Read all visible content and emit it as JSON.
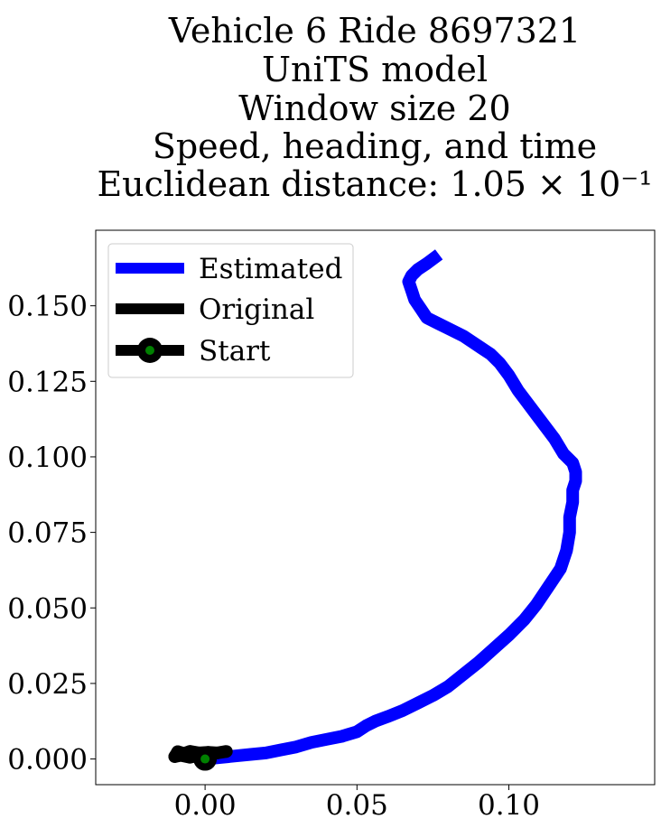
{
  "chart_data": {
    "type": "line",
    "title_lines": [
      "Vehicle 6 Ride 8697321",
      "UniTS model",
      "Window size 20",
      "Speed, heading, and time",
      "Euclidean distance: 1.05 × 10⁻¹"
    ],
    "xlabel": "",
    "ylabel": "",
    "xlim": [
      -0.036,
      0.148
    ],
    "ylim": [
      -0.0085,
      0.175
    ],
    "xticks": [
      0.0,
      0.05,
      0.1
    ],
    "xtick_labels": [
      "0.00",
      "0.05",
      "0.10"
    ],
    "yticks": [
      0.0,
      0.025,
      0.05,
      0.075,
      0.1,
      0.125,
      0.15
    ],
    "ytick_labels": [
      "0.000",
      "0.025",
      "0.050",
      "0.075",
      "0.100",
      "0.125",
      "0.150"
    ],
    "grid": false,
    "legend_position": "upper-left",
    "colors": {
      "estimated": "#0000ff",
      "original": "#000000",
      "start_marker_edge": "#000000",
      "start_marker_fill": "#008000"
    },
    "series": [
      {
        "name": "Estimated",
        "x": [
          0.0,
          0.005,
          0.01,
          0.015,
          0.02,
          0.025,
          0.03,
          0.035,
          0.04,
          0.045,
          0.05,
          0.053,
          0.056,
          0.06,
          0.065,
          0.07,
          0.075,
          0.08,
          0.085,
          0.09,
          0.095,
          0.1,
          0.105,
          0.109,
          0.113,
          0.117,
          0.119,
          0.12,
          0.12,
          0.121,
          0.121,
          0.122,
          0.122,
          0.121,
          0.118,
          0.115,
          0.112,
          0.109,
          0.106,
          0.103,
          0.1,
          0.097,
          0.094,
          0.091,
          0.088,
          0.085,
          0.081,
          0.077,
          0.073,
          0.071,
          0.069,
          0.068,
          0.067,
          0.068,
          0.07,
          0.073,
          0.077
        ],
        "y": [
          0.0,
          0.0005,
          0.001,
          0.0015,
          0.002,
          0.003,
          0.004,
          0.0055,
          0.0065,
          0.0075,
          0.009,
          0.011,
          0.0125,
          0.014,
          0.016,
          0.0185,
          0.021,
          0.024,
          0.028,
          0.032,
          0.0365,
          0.041,
          0.046,
          0.051,
          0.057,
          0.063,
          0.069,
          0.075,
          0.08,
          0.085,
          0.089,
          0.092,
          0.095,
          0.098,
          0.101,
          0.106,
          0.11,
          0.114,
          0.118,
          0.122,
          0.127,
          0.131,
          0.134,
          0.136,
          0.138,
          0.14,
          0.142,
          0.144,
          0.146,
          0.149,
          0.152,
          0.155,
          0.158,
          0.16,
          0.162,
          0.164,
          0.167
        ]
      },
      {
        "name": "Original",
        "x": [
          0.007,
          0.004,
          0.001,
          -0.002,
          -0.005,
          -0.007,
          -0.009,
          -0.01,
          -0.008,
          -0.005,
          -0.003,
          -0.001,
          0.0
        ],
        "y": [
          0.0025,
          0.002,
          0.0022,
          0.002,
          0.0025,
          0.0018,
          0.0024,
          0.0008,
          0.0012,
          0.0006,
          0.001,
          0.0005,
          0.0
        ]
      }
    ],
    "start_point": {
      "name": "Start",
      "x": 0.0,
      "y": 0.0
    }
  }
}
